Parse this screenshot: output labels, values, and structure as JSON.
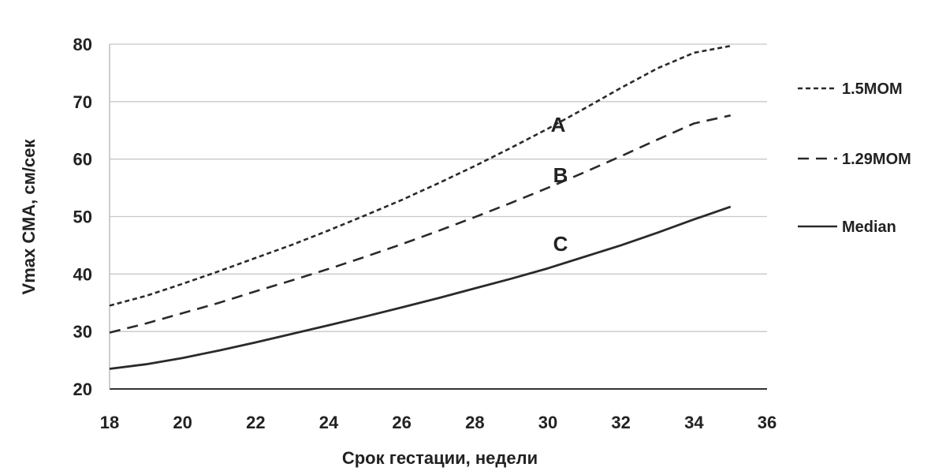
{
  "chart_data": {
    "type": "line",
    "xlabel": "Срок гестации, недели",
    "ylabel": "Vmax СМА, см/сек",
    "xlim": [
      18,
      36
    ],
    "ylim": [
      20,
      80
    ],
    "x_ticks": [
      "18",
      "20",
      "22",
      "24",
      "26",
      "28",
      "30",
      "32",
      "34",
      "36"
    ],
    "y_ticks": [
      "20",
      "30",
      "40",
      "50",
      "60",
      "70",
      "80"
    ],
    "grid": "horizontal",
    "legend_position": "right",
    "series": [
      {
        "name": "1.5MOM",
        "style": "dotted",
        "curve_label": "A",
        "x": [
          18,
          19,
          20,
          21,
          22,
          23,
          24,
          25,
          26,
          27,
          28,
          29,
          30,
          31,
          32,
          33,
          34,
          35
        ],
        "values": [
          34.5,
          36.2,
          38.3,
          40.5,
          42.8,
          45.1,
          47.6,
          50.2,
          52.9,
          55.8,
          58.8,
          62.0,
          65.3,
          68.8,
          72.4,
          75.8,
          78.5,
          79.7
        ]
      },
      {
        "name": "1.29MOM",
        "style": "dashed",
        "curve_label": "B",
        "x": [
          18,
          19,
          20,
          21,
          22,
          23,
          24,
          25,
          26,
          27,
          28,
          29,
          30,
          31,
          32,
          33,
          34,
          35
        ],
        "values": [
          29.8,
          31.4,
          33.2,
          35.0,
          37.0,
          38.9,
          40.9,
          43.0,
          45.2,
          47.5,
          49.9,
          52.4,
          55.0,
          57.7,
          60.5,
          63.4,
          66.2,
          67.6
        ]
      },
      {
        "name": "Median",
        "style": "solid",
        "curve_label": "C",
        "x": [
          18,
          19,
          20,
          21,
          22,
          23,
          24,
          25,
          26,
          27,
          28,
          29,
          30,
          31,
          32,
          33,
          34,
          35
        ],
        "values": [
          23.5,
          24.3,
          25.4,
          26.7,
          28.1,
          29.6,
          31.1,
          32.6,
          34.2,
          35.8,
          37.5,
          39.2,
          41.0,
          43.0,
          45.0,
          47.2,
          49.5,
          51.7
        ]
      }
    ]
  }
}
